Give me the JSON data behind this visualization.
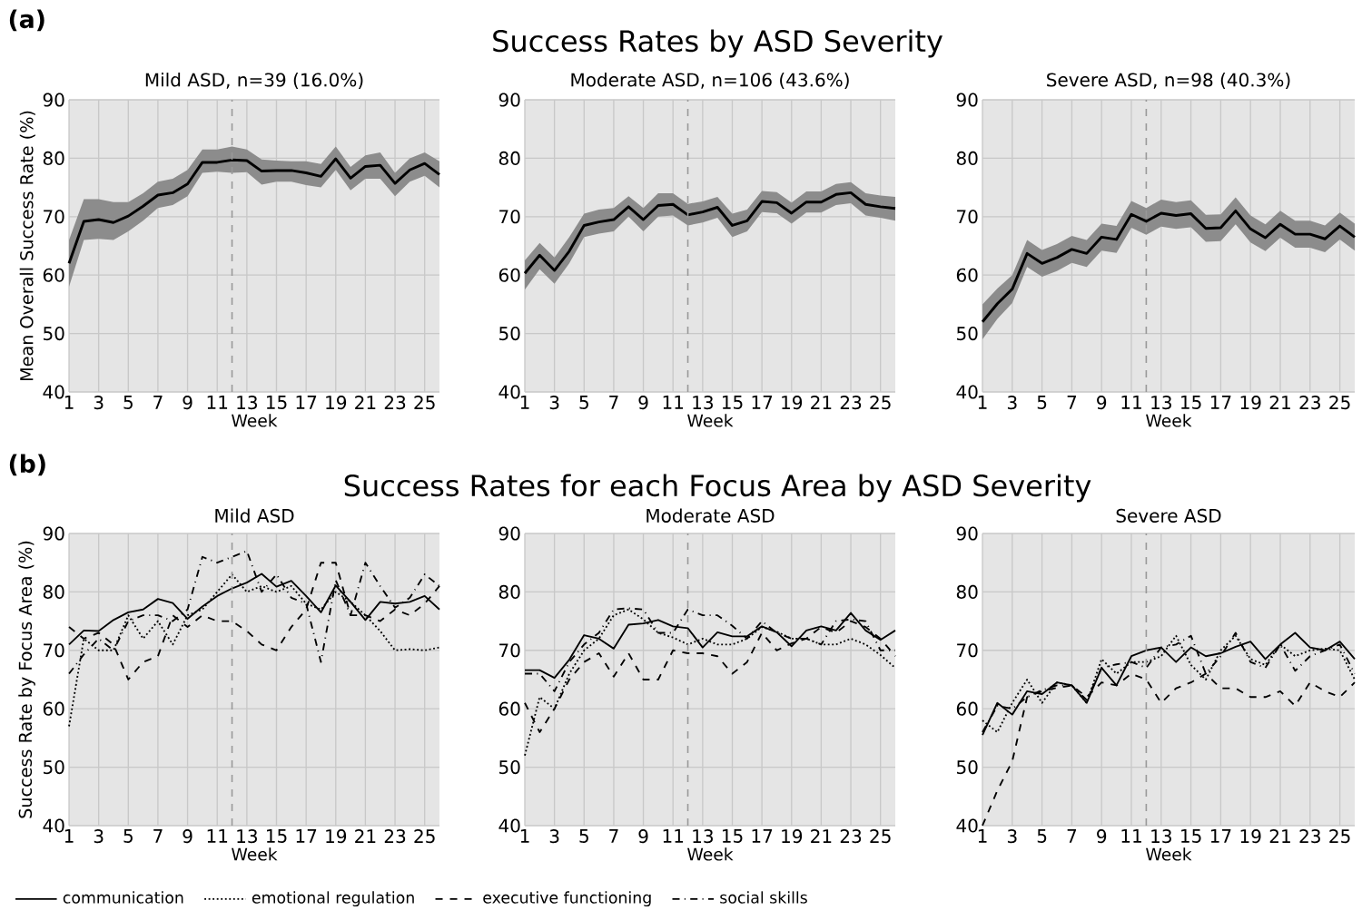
{
  "chart_data": [
    {
      "type": "line",
      "title": "Mild ASD, n=39 (16.0%)",
      "xlabel": "Week",
      "ylabel": "Mean Overall Success Rate (%)",
      "annotations": [
        "(a)",
        "Success Rates by ASD Severity"
      ],
      "x": [
        1,
        2,
        3,
        4,
        5,
        6,
        7,
        8,
        9,
        10,
        11,
        12,
        13,
        14,
        15,
        16,
        17,
        18,
        19,
        20,
        21,
        22,
        23,
        24,
        25,
        26
      ],
      "xlim": [
        1,
        26
      ],
      "ylim": [
        40,
        90
      ],
      "xticks": [
        1,
        3,
        5,
        7,
        9,
        11,
        13,
        15,
        17,
        19,
        21,
        23,
        25
      ],
      "yticks": [
        40,
        50,
        60,
        70,
        80,
        90
      ],
      "grid": true,
      "ref_lines": [
        {
          "axis": "x",
          "value": 12,
          "color": "#999999",
          "line_style": "dashed"
        }
      ],
      "series": [
        {
          "color": "#000000",
          "values": [
            62,
            69.2,
            69.5,
            69,
            70.1,
            71.8,
            73.7,
            74.1,
            75.6,
            79.3,
            79.3,
            79.7,
            79.6,
            77.8,
            77.9,
            77.9,
            77.5,
            76.9,
            79.9,
            76.6,
            78.6,
            78.8,
            75.7,
            78,
            79.1,
            77.2
          ],
          "lower": [
            58,
            66,
            66.2,
            66,
            67.5,
            69.3,
            71.5,
            72,
            73.5,
            77.5,
            77.7,
            77.5,
            77.6,
            75.5,
            76,
            76,
            75.4,
            75,
            78,
            74.5,
            76.5,
            76.5,
            73.5,
            76,
            77,
            75
          ],
          "upper": [
            66,
            73,
            73,
            72.5,
            72.5,
            74,
            76,
            76.5,
            78,
            81.5,
            81.5,
            82,
            81.5,
            79.8,
            79.6,
            79.5,
            79.5,
            79,
            82,
            78.5,
            80.5,
            81,
            77.5,
            80,
            81,
            79.5
          ]
        }
      ]
    },
    {
      "type": "line",
      "title": "Moderate ASD, n=106 (43.6%)",
      "xlabel": "Week",
      "x": [
        1,
        2,
        3,
        4,
        5,
        6,
        7,
        8,
        9,
        10,
        11,
        12,
        13,
        14,
        15,
        16,
        17,
        18,
        19,
        20,
        21,
        22,
        23,
        24,
        25,
        26
      ],
      "xlim": [
        1,
        26
      ],
      "ylim": [
        40,
        90
      ],
      "xticks": [
        1,
        3,
        5,
        7,
        9,
        11,
        13,
        15,
        17,
        19,
        21,
        23,
        25
      ],
      "yticks": [
        40,
        50,
        60,
        70,
        80,
        90
      ],
      "grid": true,
      "ref_lines": [
        {
          "axis": "x",
          "value": 12,
          "color": "#999999",
          "line_style": "dashed"
        }
      ],
      "series": [
        {
          "color": "#000000",
          "values": [
            60.3,
            63.4,
            60.8,
            64.1,
            68.5,
            69.1,
            69.5,
            71.7,
            69.5,
            71.9,
            72.1,
            70.3,
            70.8,
            71.6,
            68.5,
            69.3,
            72.6,
            72.4,
            70.6,
            72.5,
            72.5,
            73.8,
            74.1,
            72.1,
            71.7,
            71.4
          ],
          "lower": [
            57.5,
            61,
            58.5,
            62,
            66.5,
            67.1,
            67.5,
            70,
            67.5,
            70,
            70.2,
            68.5,
            69,
            69.8,
            66.5,
            67.5,
            70.8,
            70.6,
            68.8,
            70.7,
            70.7,
            72,
            72.3,
            70.2,
            69.8,
            69.3
          ],
          "upper": [
            62.5,
            65.5,
            63,
            66.5,
            70.5,
            71.2,
            71.5,
            73.5,
            71.5,
            74,
            74,
            72.2,
            72.6,
            73.4,
            70.5,
            71.2,
            74.4,
            74.2,
            72.4,
            74.3,
            74.3,
            75.6,
            75.9,
            74,
            73.6,
            73.4
          ]
        }
      ]
    },
    {
      "type": "line",
      "title": "Severe ASD, n=98 (40.3%)",
      "xlabel": "Week",
      "x": [
        1,
        2,
        3,
        4,
        5,
        6,
        7,
        8,
        9,
        10,
        11,
        12,
        13,
        14,
        15,
        16,
        17,
        18,
        19,
        20,
        21,
        22,
        23,
        24,
        25,
        26
      ],
      "xlim": [
        1,
        26
      ],
      "ylim": [
        40,
        90
      ],
      "xticks": [
        1,
        3,
        5,
        7,
        9,
        11,
        13,
        15,
        17,
        19,
        21,
        23,
        25
      ],
      "yticks": [
        40,
        50,
        60,
        70,
        80,
        90
      ],
      "grid": true,
      "ref_lines": [
        {
          "axis": "x",
          "value": 12,
          "color": "#999999",
          "line_style": "dashed"
        }
      ],
      "series": [
        {
          "color": "#000000",
          "values": [
            52,
            55.1,
            57.6,
            63.7,
            62,
            63,
            64.4,
            63.7,
            66.5,
            66.1,
            70.4,
            69.2,
            70.6,
            70.2,
            70.5,
            68,
            68.1,
            71,
            67.9,
            66.4,
            68.7,
            67,
            67,
            66.2,
            68.4,
            66.5
          ],
          "lower": [
            49,
            52.5,
            55.2,
            61.4,
            59.7,
            60.7,
            62.1,
            61.4,
            64.2,
            63.8,
            68.1,
            66.9,
            68.3,
            67.9,
            68.2,
            65.7,
            65.8,
            68.7,
            65.6,
            64.1,
            66.4,
            64.7,
            64.7,
            63.9,
            66.1,
            64.2
          ],
          "upper": [
            55,
            57.7,
            60,
            66,
            64.3,
            65.3,
            66.7,
            66,
            68.8,
            68.4,
            72.7,
            71.5,
            72.9,
            72.5,
            72.8,
            70.3,
            70.4,
            73.3,
            70.2,
            68.7,
            71,
            69.3,
            69.3,
            68.5,
            70.7,
            68.8
          ]
        }
      ]
    },
    {
      "type": "line",
      "title": "Mild ASD",
      "xlabel": "Week",
      "ylabel": "Success Rate by Focus Area (%)",
      "annotations": [
        "(b)",
        "Success Rates for each Focus Area by ASD Severity"
      ],
      "x": [
        1,
        2,
        3,
        4,
        5,
        6,
        7,
        8,
        9,
        10,
        11,
        12,
        13,
        14,
        15,
        16,
        17,
        18,
        19,
        20,
        21,
        22,
        23,
        24,
        25,
        26
      ],
      "xlim": [
        1,
        26
      ],
      "ylim": [
        40,
        90
      ],
      "xticks": [
        1,
        3,
        5,
        7,
        9,
        11,
        13,
        15,
        17,
        19,
        21,
        23,
        25
      ],
      "yticks": [
        40,
        50,
        60,
        70,
        80,
        90
      ],
      "grid": true,
      "ref_lines": [
        {
          "axis": "x",
          "value": 12,
          "color": "#999999",
          "line_style": "dashed"
        }
      ],
      "series": [
        {
          "color": "#000000",
          "line_style": "solid",
          "values": [
            71,
            73.4,
            73.3,
            75.2,
            76.5,
            77,
            78.8,
            78.1,
            75.4,
            77.5,
            79.3,
            80.6,
            81.6,
            83.1,
            80.9,
            81.9,
            79.3,
            76.5,
            81.1,
            78.3,
            75.2,
            78.3,
            78,
            78.3,
            79.3,
            77
          ]
        },
        {
          "color": "#000000",
          "line_style": "dotted",
          "values": [
            57,
            72,
            70,
            70,
            76,
            72,
            75,
            71,
            76,
            77,
            80,
            83,
            80,
            81,
            80,
            81,
            78,
            77,
            80,
            78.3,
            76,
            73.3,
            70,
            70.2,
            70,
            70.5
          ]
        },
        {
          "color": "#000000",
          "line_style": "dashed",
          "values": [
            74,
            72,
            73,
            71,
            65,
            68,
            69,
            76,
            74,
            76,
            75,
            75,
            73.3,
            71,
            70,
            74,
            77,
            85,
            85,
            76,
            76,
            75,
            77,
            76,
            78,
            81
          ]
        },
        {
          "color": "#000000",
          "line_style": "dashdot",
          "values": [
            66,
            69.3,
            72,
            70,
            75,
            76,
            76,
            75,
            77,
            86,
            85,
            86,
            87,
            80,
            83,
            79,
            78,
            68,
            82,
            76,
            85,
            81,
            77.3,
            79,
            83,
            81
          ]
        }
      ]
    },
    {
      "type": "line",
      "title": "Moderate ASD",
      "xlabel": "Week",
      "x": [
        1,
        2,
        3,
        4,
        5,
        6,
        7,
        8,
        9,
        10,
        11,
        12,
        13,
        14,
        15,
        16,
        17,
        18,
        19,
        20,
        21,
        22,
        23,
        24,
        25,
        26
      ],
      "xlim": [
        1,
        26
      ],
      "ylim": [
        40,
        90
      ],
      "xticks": [
        1,
        3,
        5,
        7,
        9,
        11,
        13,
        15,
        17,
        19,
        21,
        23,
        25
      ],
      "yticks": [
        40,
        50,
        60,
        70,
        80,
        90
      ],
      "grid": true,
      "legend": "bottom",
      "ref_lines": [
        {
          "axis": "x",
          "value": 12,
          "color": "#999999",
          "line_style": "dashed"
        }
      ],
      "series": [
        {
          "name": "communication",
          "color": "#000000",
          "line_style": "solid",
          "values": [
            66.6,
            66.6,
            65.3,
            68.4,
            72.6,
            72,
            70.3,
            74.4,
            74.6,
            75.2,
            74.1,
            73.8,
            70.5,
            73.1,
            72.4,
            72.4,
            74.1,
            73.1,
            70.7,
            73.4,
            74.1,
            73.4,
            76.4,
            73.4,
            71.8,
            73.4
          ]
        },
        {
          "name": "emotional regulation",
          "color": "#000000",
          "line_style": "dotted",
          "values": [
            52,
            62,
            60,
            66,
            70,
            72,
            76,
            77,
            75.3,
            73,
            72.2,
            71,
            72,
            71,
            71,
            72,
            74,
            73.2,
            72,
            72,
            71,
            71,
            72,
            71,
            69.2,
            67
          ]
        },
        {
          "name": "executive functioning",
          "color": "#000000",
          "line_style": "dashed",
          "values": [
            61,
            56,
            60,
            65,
            68,
            69.5,
            65.5,
            69.5,
            65,
            65,
            70,
            69.5,
            69.5,
            69,
            66,
            68,
            73,
            70,
            71.2,
            72,
            74,
            73,
            75,
            74,
            72,
            69
          ]
        },
        {
          "name": "social skills",
          "color": "#000000",
          "line_style": "dashdot",
          "values": [
            66,
            66,
            63,
            68,
            71,
            73,
            77,
            77.2,
            77,
            73,
            73,
            77,
            76,
            76,
            74.2,
            72,
            75,
            73,
            72,
            72,
            71,
            75,
            75.3,
            75,
            70,
            70
          ]
        }
      ]
    },
    {
      "type": "line",
      "title": "Severe ASD",
      "xlabel": "Week",
      "x": [
        1,
        2,
        3,
        4,
        5,
        6,
        7,
        8,
        9,
        10,
        11,
        12,
        13,
        14,
        15,
        16,
        17,
        18,
        19,
        20,
        21,
        22,
        23,
        24,
        25,
        26
      ],
      "xlim": [
        1,
        26
      ],
      "ylim": [
        40,
        90
      ],
      "xticks": [
        1,
        3,
        5,
        7,
        9,
        11,
        13,
        15,
        17,
        19,
        21,
        23,
        25
      ],
      "yticks": [
        40,
        50,
        60,
        70,
        80,
        90
      ],
      "grid": true,
      "ref_lines": [
        {
          "axis": "x",
          "value": 12,
          "color": "#999999",
          "line_style": "dashed"
        }
      ],
      "series": [
        {
          "color": "#000000",
          "line_style": "solid",
          "values": [
            55.5,
            61,
            59,
            63,
            62.5,
            64.5,
            64,
            61,
            67,
            64,
            69,
            70,
            70.5,
            68,
            70.5,
            69,
            69.5,
            70.6,
            71.5,
            68.5,
            71,
            73,
            70.5,
            70,
            71.5,
            68.5
          ]
        },
        {
          "color": "#000000",
          "line_style": "dotted",
          "values": [
            58,
            56,
            61,
            65,
            61,
            64.5,
            64,
            61,
            68.5,
            66,
            68,
            68,
            69,
            72.5,
            67.5,
            65,
            70,
            72.5,
            68.5,
            67.5,
            71,
            69,
            70,
            70.3,
            70,
            65
          ]
        },
        {
          "color": "#000000",
          "line_style": "dashed",
          "values": [
            40,
            46,
            51,
            62,
            63,
            63.6,
            64,
            62,
            64.5,
            64,
            66,
            65,
            61,
            63.5,
            64.5,
            66,
            63.5,
            63.5,
            62,
            62,
            63,
            60.5,
            64.5,
            63,
            62,
            64.5
          ]
        },
        {
          "color": "#000000",
          "line_style": "dashdot",
          "values": [
            56,
            60.5,
            60,
            62,
            63.2,
            64,
            64,
            61.5,
            67,
            67.6,
            68,
            67,
            70.5,
            71,
            72.5,
            66,
            69,
            73,
            68,
            67,
            71,
            66.5,
            69,
            70,
            71,
            66
          ]
        }
      ]
    }
  ]
}
